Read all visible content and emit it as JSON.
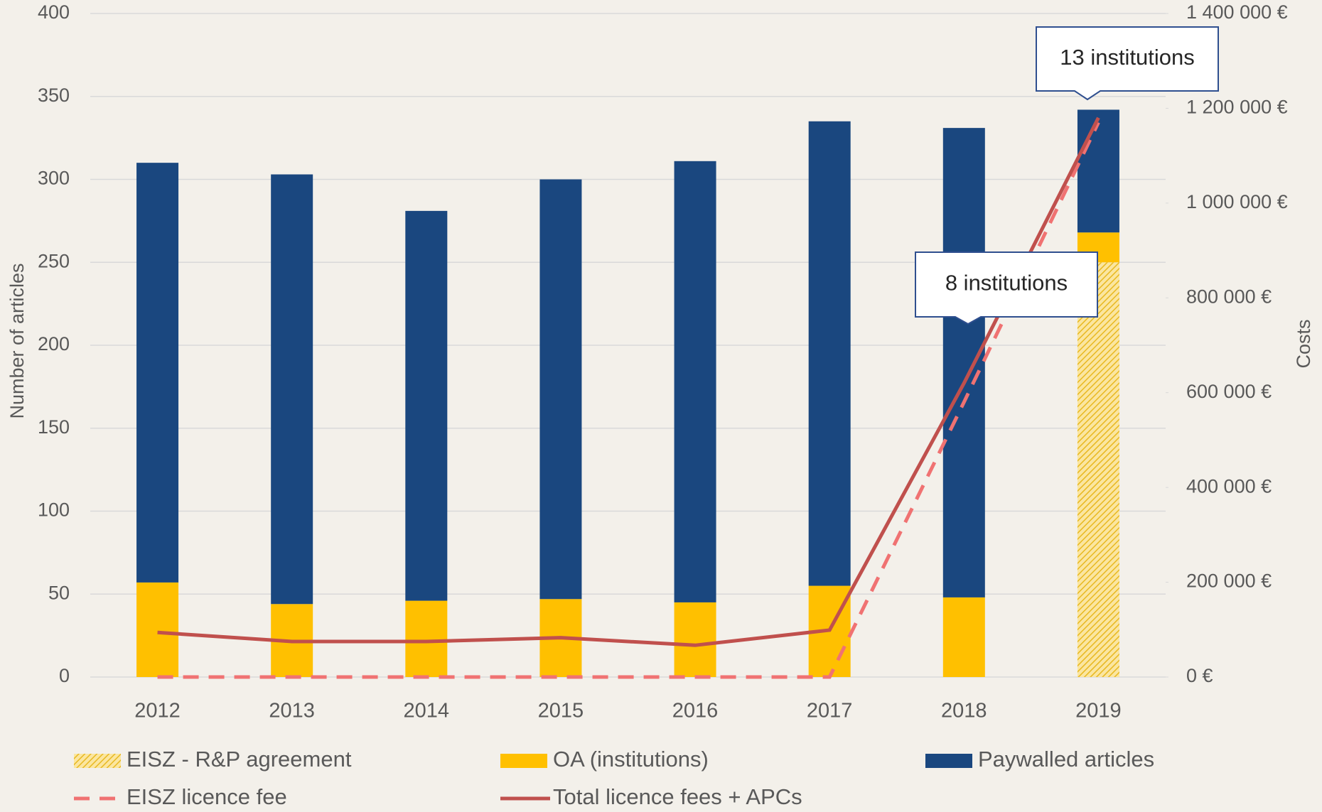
{
  "chart_data": {
    "type": "bar",
    "stacked": true,
    "categories": [
      "2012",
      "2013",
      "2014",
      "2015",
      "2016",
      "2017",
      "2018",
      "2019"
    ],
    "series": [
      {
        "name": "EISZ - R&P agreement",
        "color": "#f2c230",
        "pattern": "hatched",
        "values": [
          0,
          0,
          0,
          0,
          0,
          0,
          0,
          250
        ]
      },
      {
        "name": "OA (institutions)",
        "color": "#ffc000",
        "values": [
          57,
          44,
          46,
          47,
          45,
          55,
          48,
          18
        ]
      },
      {
        "name": "Paywalled articles",
        "color": "#1a477f",
        "values": [
          253,
          259,
          235,
          253,
          266,
          280,
          283,
          74
        ]
      },
      {
        "name": "EISZ licence fee",
        "type": "line",
        "axis": "y2",
        "style": "dashed",
        "color": "#f07272",
        "values": [
          0,
          0,
          0,
          0,
          0,
          0,
          580000,
          1170000
        ]
      },
      {
        "name": "Total licence fees + APCs",
        "type": "line",
        "axis": "y2",
        "style": "solid",
        "color": "#c0504d",
        "values": [
          94000,
          75000,
          75000,
          83000,
          67000,
          99000,
          620000,
          1180000
        ]
      }
    ],
    "ylabel": "Number of articles",
    "y2label": "Costs",
    "ylim": [
      0,
      400
    ],
    "yticks": [
      0,
      50,
      100,
      150,
      200,
      250,
      300,
      350,
      400
    ],
    "y2lim": [
      0,
      1400000
    ],
    "y2ticks": [
      {
        "value": 0,
        "label": "0 €"
      },
      {
        "value": 200000,
        "label": "200 000 €"
      },
      {
        "value": 400000,
        "label": "400 000 €"
      },
      {
        "value": 600000,
        "label": "600 000 €"
      },
      {
        "value": 800000,
        "label": "800 000 €"
      },
      {
        "value": 1000000,
        "label": "1 000 000 €"
      },
      {
        "value": 1200000,
        "label": "1 200 000 €"
      },
      {
        "value": 1400000,
        "label": "1 400 000 €"
      }
    ],
    "grid": true,
    "legend": "bottom",
    "annotations": [
      "13 institutions",
      "8 institutions"
    ]
  }
}
